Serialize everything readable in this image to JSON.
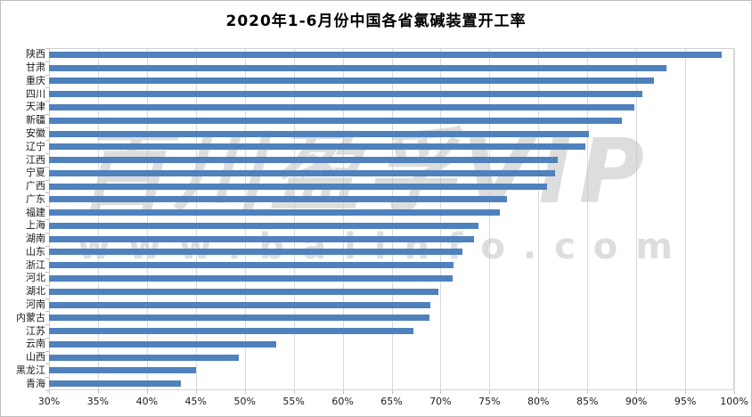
{
  "title": "2020年1-6月份中国各省氯碱装置开工率",
  "watermark": {
    "line1": "百川盈孚VIP",
    "line2": "www.baiinfo.com"
  },
  "colors": {
    "bar": "#4f81bd",
    "gridline": "#d9d9d9",
    "plot_border": "#d0d0d0",
    "axis_tick": "#bfbfbf",
    "watermark": "#c3c3c3"
  },
  "chart_data": {
    "type": "bar",
    "orientation": "horizontal",
    "title": "2020年1-6月份中国各省氯碱装置开工率",
    "categories": [
      "陕西",
      "甘肃",
      "重庆",
      "四川",
      "天津",
      "新疆",
      "安徽",
      "辽宁",
      "江西",
      "宁夏",
      "广西",
      "广东",
      "福建",
      "上海",
      "湖南",
      "山东",
      "浙江",
      "河北",
      "湖北",
      "河南",
      "内蒙古",
      "江苏",
      "云南",
      "山西",
      "黑龙江",
      "青海"
    ],
    "values": [
      98.7,
      93.1,
      91.8,
      90.6,
      89.8,
      88.5,
      85.2,
      84.8,
      82.0,
      81.7,
      80.9,
      76.8,
      76.1,
      73.9,
      73.4,
      72.2,
      71.3,
      71.2,
      69.8,
      69.0,
      68.9,
      67.2,
      53.2,
      49.4,
      45.0,
      43.5
    ],
    "xlabel": "",
    "ylabel": "",
    "xlim": [
      30,
      100
    ],
    "x_tick_step": 5,
    "x_tick_labels": [
      "30%",
      "35%",
      "40%",
      "45%",
      "50%",
      "55%",
      "60%",
      "65%",
      "70%",
      "75%",
      "80%",
      "85%",
      "90%",
      "95%",
      "100%"
    ],
    "grid": "vertical",
    "legend": "none"
  }
}
